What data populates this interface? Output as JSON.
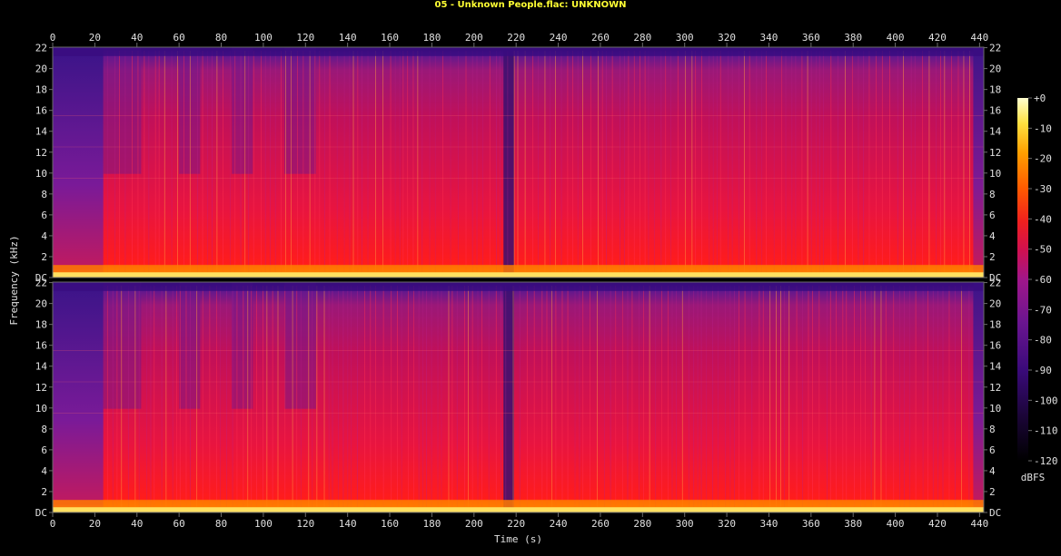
{
  "title": "05 - Unknown People.flac: UNKNOWN",
  "chart_data": {
    "type": "heatmap",
    "title": "05 - Unknown People.flac: UNKNOWN",
    "xlabel": "Time (s)",
    "ylabel": "Frequency (kHz)",
    "xlim": [
      0,
      442
    ],
    "ylim_khz": [
      0,
      22.05
    ],
    "x_ticks": [
      0,
      20,
      40,
      60,
      80,
      100,
      120,
      140,
      160,
      180,
      200,
      220,
      240,
      260,
      280,
      300,
      320,
      340,
      360,
      380,
      400,
      420,
      440
    ],
    "y_ticks": [
      {
        "value": 0,
        "label": "DC"
      },
      {
        "value": 2,
        "label": "2"
      },
      {
        "value": 4,
        "label": "4"
      },
      {
        "value": 6,
        "label": "6"
      },
      {
        "value": 8,
        "label": "8"
      },
      {
        "value": 10,
        "label": "10"
      },
      {
        "value": 12,
        "label": "12"
      },
      {
        "value": 14,
        "label": "14"
      },
      {
        "value": 16,
        "label": "16"
      },
      {
        "value": 18,
        "label": "18"
      },
      {
        "value": 20,
        "label": "20"
      },
      {
        "value": 22,
        "label": "22"
      }
    ],
    "channels": 2,
    "colorbar": {
      "label": "dBFS",
      "range": [
        -120,
        0
      ],
      "ticks": [
        {
          "value": 0,
          "label": "+0"
        },
        {
          "value": -10,
          "label": "-10"
        },
        {
          "value": -20,
          "label": "-20"
        },
        {
          "value": -30,
          "label": "-30"
        },
        {
          "value": -40,
          "label": "-40"
        },
        {
          "value": -50,
          "label": "-50"
        },
        {
          "value": -60,
          "label": "-60"
        },
        {
          "value": -70,
          "label": "-70"
        },
        {
          "value": -80,
          "label": "-80"
        },
        {
          "value": -90,
          "label": "-90"
        },
        {
          "value": -100,
          "label": "-100"
        },
        {
          "value": -110,
          "label": "-110"
        },
        {
          "value": -120,
          "label": "-120"
        }
      ],
      "colors": [
        "#000000",
        "#1a0536",
        "#3a0a7a",
        "#6a1590",
        "#a0168a",
        "#d01050",
        "#f0201e",
        "#ff5a00",
        "#ffa000",
        "#ffe040",
        "#ffffd0"
      ]
    },
    "grid": true,
    "colors": {
      "axis": "#6c6c6c",
      "text": "#e0e0e0",
      "title": "#ffff33",
      "grid_line": "#ff6a6a"
    }
  }
}
